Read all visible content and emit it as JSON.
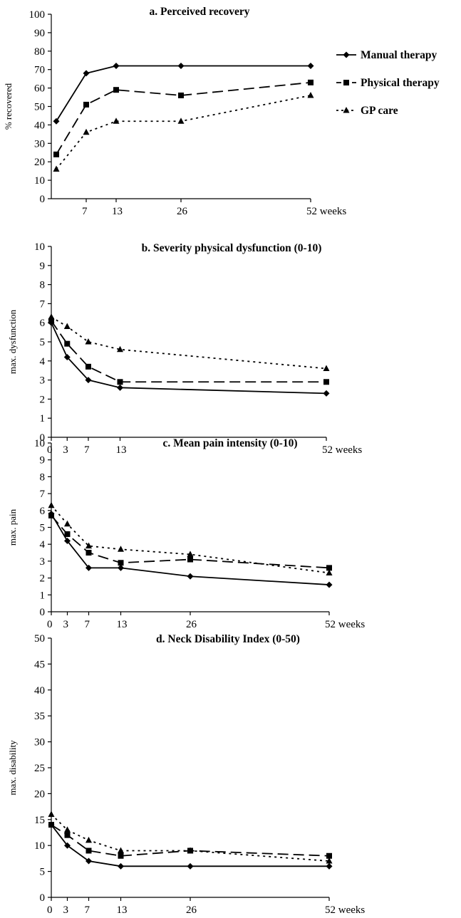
{
  "figure": {
    "legend": {
      "placement": "right of panel a",
      "entries": [
        {
          "name": "Manual therapy",
          "marker": "diamond",
          "dash": "solid"
        },
        {
          "name": "Physical therapy",
          "marker": "square",
          "dash": "long-dash"
        },
        {
          "name": "GP care",
          "marker": "triangle",
          "dash": "dotted"
        }
      ]
    },
    "x_unit_label": "weeks",
    "line_color": "#000000"
  },
  "chart_data": [
    {
      "type": "line",
      "title": "a. Perceived recovery",
      "ylabel": "% recovered",
      "xlabel": "",
      "ylim": [
        0,
        100
      ],
      "yticks": [
        0,
        10,
        20,
        30,
        40,
        50,
        60,
        70,
        80,
        90,
        100
      ],
      "xlim": [
        0,
        52
      ],
      "xticks": [
        7,
        13,
        26,
        52
      ],
      "x_unit": "weeks",
      "grid": false,
      "series": [
        {
          "name": "Manual therapy",
          "x": [
            1,
            7,
            13,
            26,
            52
          ],
          "values": [
            42,
            68,
            72,
            72,
            72
          ]
        },
        {
          "name": "Physical therapy",
          "x": [
            1,
            7,
            13,
            26,
            52
          ],
          "values": [
            24,
            51,
            59,
            56,
            63
          ]
        },
        {
          "name": "GP care",
          "x": [
            1,
            7,
            13,
            26,
            52
          ],
          "values": [
            16,
            36,
            42,
            42,
            56
          ]
        }
      ]
    },
    {
      "type": "line",
      "title": "b. Severity physical dysfunction (0-10)",
      "ylabel": "max. dysfunction",
      "xlabel": "",
      "ylim": [
        0,
        10
      ],
      "yticks": [
        0,
        1,
        2,
        3,
        4,
        5,
        6,
        7,
        8,
        9,
        10
      ],
      "xlim": [
        0,
        52
      ],
      "xticks": [
        0,
        3,
        7,
        13,
        52
      ],
      "x_unit": "weeks",
      "grid": false,
      "series": [
        {
          "name": "Manual therapy",
          "x": [
            0,
            3,
            7,
            13,
            52
          ],
          "values": [
            6.0,
            4.2,
            3.0,
            2.6,
            2.3
          ]
        },
        {
          "name": "Physical therapy",
          "x": [
            0,
            3,
            7,
            13,
            52
          ],
          "values": [
            6.1,
            4.9,
            3.7,
            2.9,
            2.9
          ]
        },
        {
          "name": "GP care",
          "x": [
            0,
            3,
            7,
            13,
            52
          ],
          "values": [
            6.3,
            5.8,
            5.0,
            4.6,
            3.6
          ]
        }
      ]
    },
    {
      "type": "line",
      "title": "c. Mean pain intensity (0-10)",
      "ylabel": "max. pain",
      "xlabel": "",
      "ylim": [
        0,
        10
      ],
      "yticks": [
        0,
        1,
        2,
        3,
        4,
        5,
        6,
        7,
        8,
        9,
        10
      ],
      "xlim": [
        0,
        52
      ],
      "xticks": [
        0,
        3,
        7,
        13,
        26,
        52
      ],
      "x_unit": "weeks",
      "grid": false,
      "series": [
        {
          "name": "Manual therapy",
          "x": [
            0,
            3,
            7,
            13,
            26,
            52
          ],
          "values": [
            5.8,
            4.2,
            2.6,
            2.6,
            2.1,
            1.6
          ]
        },
        {
          "name": "Physical therapy",
          "x": [
            0,
            3,
            7,
            13,
            26,
            52
          ],
          "values": [
            5.7,
            4.6,
            3.5,
            2.9,
            3.1,
            2.6
          ]
        },
        {
          "name": "GP care",
          "x": [
            0,
            3,
            7,
            13,
            26,
            52
          ],
          "values": [
            6.3,
            5.2,
            3.9,
            3.7,
            3.4,
            2.3
          ]
        }
      ]
    },
    {
      "type": "line",
      "title": "d. Neck Disability Index (0-50)",
      "ylabel": "max. disability",
      "xlabel": "",
      "ylim": [
        0,
        50
      ],
      "yticks": [
        0,
        5,
        10,
        15,
        20,
        25,
        30,
        35,
        40,
        45,
        50
      ],
      "xlim": [
        0,
        52
      ],
      "xticks": [
        0,
        3,
        7,
        13,
        26,
        52
      ],
      "x_unit": "weeks",
      "grid": false,
      "series": [
        {
          "name": "Manual therapy",
          "x": [
            0,
            3,
            7,
            13,
            26,
            52
          ],
          "values": [
            14,
            10,
            7,
            6,
            6,
            6
          ]
        },
        {
          "name": "Physical therapy",
          "x": [
            0,
            3,
            7,
            13,
            26,
            52
          ],
          "values": [
            14,
            12,
            9,
            8,
            9,
            8
          ]
        },
        {
          "name": "GP care",
          "x": [
            0,
            3,
            7,
            13,
            26,
            52
          ],
          "values": [
            16,
            13,
            11,
            9,
            9,
            7
          ]
        }
      ]
    }
  ]
}
